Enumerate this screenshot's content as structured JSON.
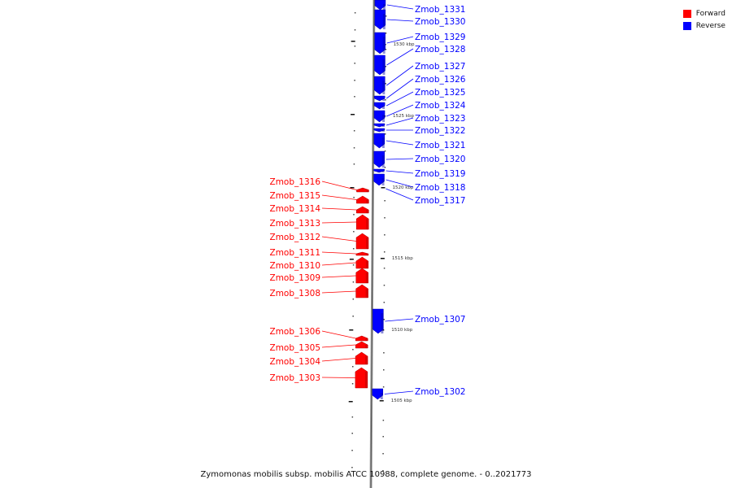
{
  "legend": {
    "forward_label": "Forward",
    "reverse_label": "Reverse",
    "forward_color": "#ff0000",
    "reverse_color": "#0000ff"
  },
  "caption": "Zymomonas mobilis subsp. mobilis ATCC 10988, complete genome. - 0..2021773",
  "scale_labels": [
    "1530 kbp",
    "1525 kbp",
    "1520 kbp",
    "1515 kbp",
    "1510 kbp",
    "1505 kbp"
  ],
  "genes": [
    {
      "name": "Zmob_1331",
      "strand": "reverse"
    },
    {
      "name": "Zmob_1330",
      "strand": "reverse"
    },
    {
      "name": "Zmob_1329",
      "strand": "reverse"
    },
    {
      "name": "Zmob_1328",
      "strand": "reverse"
    },
    {
      "name": "Zmob_1327",
      "strand": "reverse"
    },
    {
      "name": "Zmob_1326",
      "strand": "reverse"
    },
    {
      "name": "Zmob_1325",
      "strand": "reverse"
    },
    {
      "name": "Zmob_1324",
      "strand": "reverse"
    },
    {
      "name": "Zmob_1323",
      "strand": "reverse"
    },
    {
      "name": "Zmob_1322",
      "strand": "reverse"
    },
    {
      "name": "Zmob_1321",
      "strand": "reverse"
    },
    {
      "name": "Zmob_1320",
      "strand": "reverse"
    },
    {
      "name": "Zmob_1319",
      "strand": "reverse"
    },
    {
      "name": "Zmob_1318",
      "strand": "reverse"
    },
    {
      "name": "Zmob_1317",
      "strand": "reverse"
    },
    {
      "name": "Zmob_1316",
      "strand": "forward"
    },
    {
      "name": "Zmob_1315",
      "strand": "forward"
    },
    {
      "name": "Zmob_1314",
      "strand": "forward"
    },
    {
      "name": "Zmob_1313",
      "strand": "forward"
    },
    {
      "name": "Zmob_1312",
      "strand": "forward"
    },
    {
      "name": "Zmob_1311",
      "strand": "forward"
    },
    {
      "name": "Zmob_1310",
      "strand": "forward"
    },
    {
      "name": "Zmob_1309",
      "strand": "forward"
    },
    {
      "name": "Zmob_1308",
      "strand": "forward"
    },
    {
      "name": "Zmob_1307",
      "strand": "reverse"
    },
    {
      "name": "Zmob_1306",
      "strand": "forward"
    },
    {
      "name": "Zmob_1305",
      "strand": "forward"
    },
    {
      "name": "Zmob_1304",
      "strand": "forward"
    },
    {
      "name": "Zmob_1303",
      "strand": "forward"
    },
    {
      "name": "Zmob_1302",
      "strand": "reverse"
    }
  ]
}
